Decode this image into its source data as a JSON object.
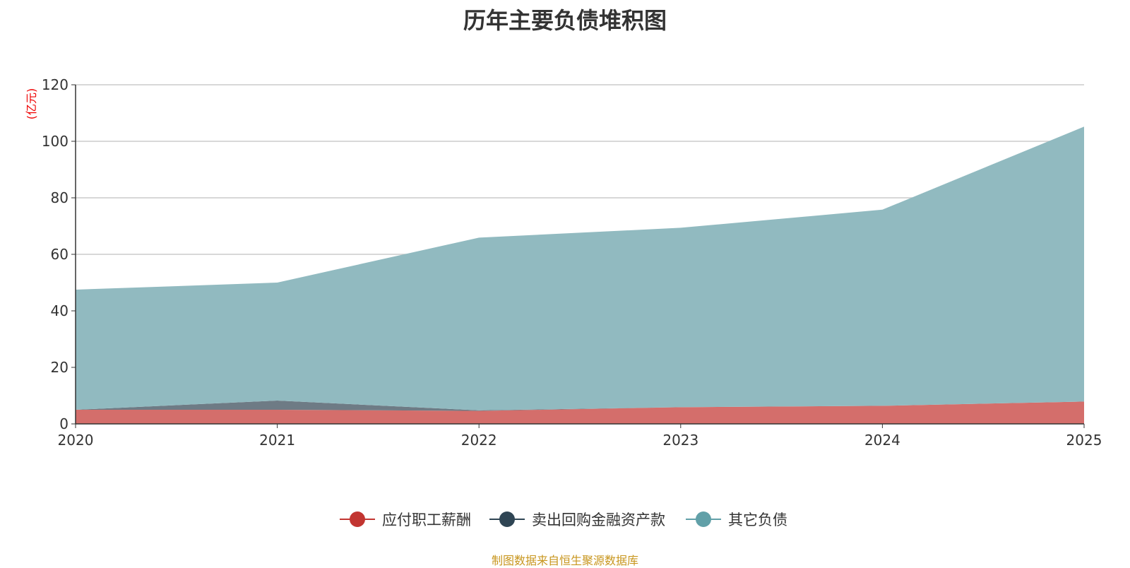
{
  "chart_data": {
    "type": "area",
    "stacked": true,
    "title": "历年主要负债堆积图",
    "ylabel": "(亿元)",
    "xlabel": "",
    "categories": [
      "2020",
      "2021",
      "2022",
      "2023",
      "2024",
      "2025"
    ],
    "ylim": [
      0,
      120
    ],
    "yticks": [
      0,
      20,
      40,
      60,
      80,
      100,
      120
    ],
    "grid": true,
    "legend_position": "bottom",
    "series": [
      {
        "name": "应付职工薪酬",
        "color": "#c23531",
        "fill": "#d46e6b",
        "values": [
          5.0,
          5.0,
          4.6,
          5.9,
          6.4,
          7.9
        ]
      },
      {
        "name": "卖出回购金融资产款",
        "color": "#2f4554",
        "fill": "#6e7b85",
        "values": [
          0.0,
          3.25,
          0.2,
          0.0,
          0.0,
          0.0
        ]
      },
      {
        "name": "其它负债",
        "color": "#61a0a8",
        "fill": "#91bac0",
        "values": [
          42.5,
          41.75,
          61.1,
          63.5,
          69.4,
          97.3
        ]
      }
    ]
  },
  "source": "制图数据来自恒生聚源数据库"
}
